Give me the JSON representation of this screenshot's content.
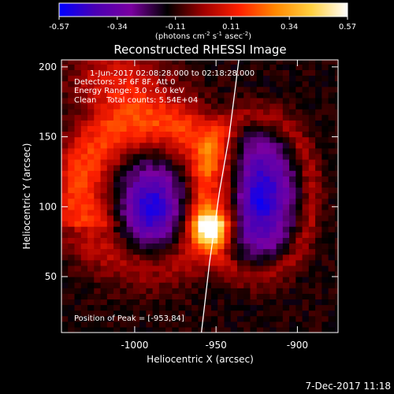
{
  "chart_data": {
    "type": "heatmap",
    "title": "Reconstructed RHESSI Image",
    "xlabel": "Heliocentric X (arcsec)",
    "ylabel": "Heliocentric Y (arcsec)",
    "xlim": [
      -1045,
      -875
    ],
    "ylim": [
      10,
      205
    ],
    "x_ticks": [
      -1000,
      -950,
      -900
    ],
    "x_tick_labels": [
      "-1000",
      "-950",
      "-900"
    ],
    "y_ticks": [
      50,
      100,
      150,
      200
    ],
    "y_tick_labels": [
      "50",
      "100",
      "150",
      "200"
    ],
    "colorbar": {
      "min": -0.57,
      "max": 0.57,
      "tick_values": [
        -0.57,
        -0.34,
        -0.11,
        0.11,
        0.34,
        0.57
      ],
      "tick_labels": [
        "-0.57",
        "-0.34",
        "-0.11",
        "0.11",
        "0.34",
        "0.57"
      ],
      "unit": "(photons cm",
      "unit_exp1": "-2",
      "unit_mid": " s",
      "unit_exp2": "-1",
      "unit_mid2": " asec",
      "unit_exp3": "-2",
      "unit_end": ")",
      "colors": [
        "#0000ff",
        "#4b00b4",
        "#7a00a0",
        "#000000",
        "#a00000",
        "#ff2000",
        "#ff8800",
        "#ffd040",
        "#ffffff"
      ]
    },
    "annotations": [
      "1-Jun-2017 02:08:28.000 to 02:18:28.000",
      "Detectors: 3F 6F 8F, Att 0",
      "Energy Range: 3.0 - 6.0 keV",
      "Clean    Total counts: 5.54E+04"
    ],
    "peak_label": "Position of Peak = [-953,84]",
    "peak": {
      "x": -953,
      "y": 84
    },
    "limb_line": [
      [
        -959,
        10
      ],
      [
        -954,
        60
      ],
      [
        -948,
        110
      ],
      [
        -942,
        150
      ],
      [
        -936,
        205
      ]
    ],
    "sources": [
      {
        "kind": "bright-ring",
        "cx": -990,
        "cy": 110,
        "rx": 44,
        "ry": 50,
        "value": 0.3
      },
      {
        "kind": "bright-knot",
        "cx": -953,
        "cy": 84,
        "r": 8,
        "value": 0.57
      },
      {
        "kind": "dark-core",
        "cx": -990,
        "cy": 98,
        "rx": 16,
        "ry": 28,
        "value": -0.4
      },
      {
        "kind": "dark-core",
        "cx": -925,
        "cy": 108,
        "rx": 18,
        "ry": 36,
        "value": -0.45
      },
      {
        "kind": "faint-ring",
        "cx": -925,
        "cy": 108,
        "rx": 34,
        "ry": 58,
        "value": 0.15
      }
    ]
  },
  "footer": {
    "date": "7-Dec-2017 11:18"
  }
}
